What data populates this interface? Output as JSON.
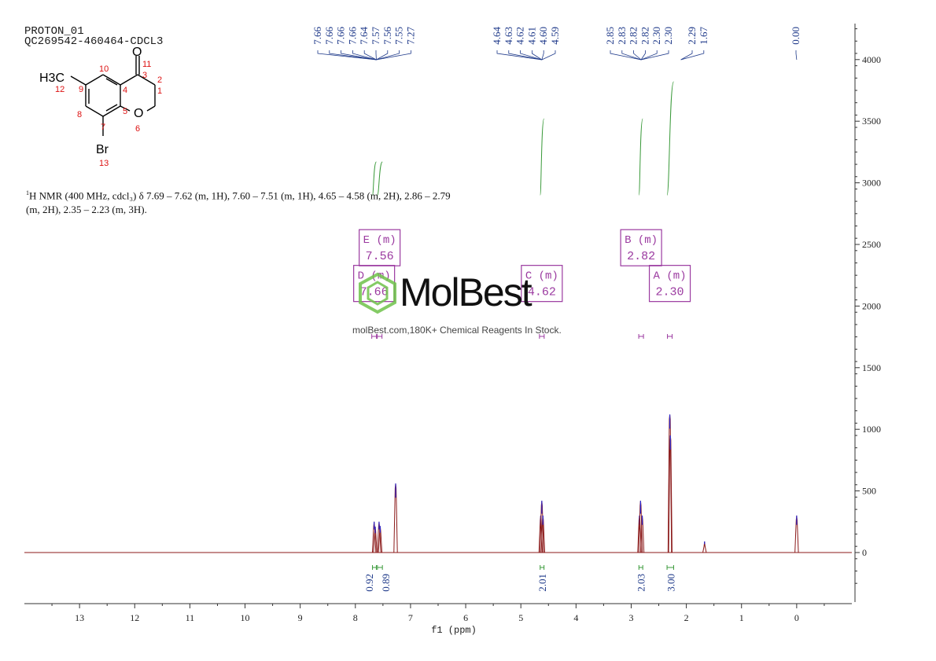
{
  "header": {
    "line1": "PROTON_01",
    "line2": "QC269542-460464-CDCL3"
  },
  "summary": {
    "nucleus_sup": "1",
    "text": "H NMR (400 MHz, cdcl₃) δ 7.69 – 7.62 (m, 1H), 7.60 – 7.51 (m, 1H), 4.65 – 4.58 (m, 2H), 2.86 – 2.79 (m, 2H), 2.35 – 2.23 (m, 3H)."
  },
  "structure": {
    "substituent_left": "H3C",
    "substituent_bottom": "Br",
    "carbonyl_oxygen": "O",
    "ring_oxygen": "O",
    "atom_numbers": [
      "1",
      "2",
      "3",
      "4",
      "5",
      "6",
      "7",
      "8",
      "9",
      "10",
      "11",
      "12",
      "13"
    ]
  },
  "watermark": {
    "brand": "MolBest",
    "tagline": "molBest.com,180K+ Chemical Reagents In Stock."
  },
  "chart_data": {
    "type": "line",
    "xlabel": "f1 (ppm)",
    "xlim": [
      14.0,
      -1.0
    ],
    "x_reversed": true,
    "ylim": [
      -400,
      4300
    ],
    "x_ticks": [
      13,
      12,
      11,
      10,
      9,
      8,
      7,
      6,
      5,
      4,
      3,
      2,
      1,
      0
    ],
    "y_ticks": [
      0,
      500,
      1000,
      1500,
      2000,
      2500,
      3000,
      3500,
      4000
    ],
    "peak_labels": [
      "7.66",
      "7.66",
      "7.66",
      "7.66",
      "7.64",
      "7.57",
      "7.56",
      "7.55",
      "7.27",
      "4.64",
      "4.63",
      "4.62",
      "4.61",
      "4.60",
      "4.59",
      "2.85",
      "2.83",
      "2.82",
      "2.82",
      "2.30",
      "2.30",
      "2.29",
      "1.67",
      "0.00"
    ],
    "peaks": [
      {
        "x": 7.66,
        "h": 250
      },
      {
        "x": 7.64,
        "h": 210
      },
      {
        "x": 7.57,
        "h": 250
      },
      {
        "x": 7.55,
        "h": 215
      },
      {
        "x": 7.27,
        "h": 560
      },
      {
        "x": 4.64,
        "h": 300
      },
      {
        "x": 4.62,
        "h": 420
      },
      {
        "x": 4.6,
        "h": 300
      },
      {
        "x": 2.85,
        "h": 300
      },
      {
        "x": 2.83,
        "h": 420
      },
      {
        "x": 2.8,
        "h": 300
      },
      {
        "x": 2.3,
        "h": 1120
      },
      {
        "x": 2.29,
        "h": 950
      },
      {
        "x": 1.67,
        "h": 90
      },
      {
        "x": 0.0,
        "h": 300
      }
    ],
    "integrals": [
      {
        "from": 7.69,
        "to": 7.62,
        "value": "0.92",
        "y_start": 2900,
        "y_end": 3170
      },
      {
        "from": 7.6,
        "to": 7.51,
        "value": "0.89",
        "y_start": 2900,
        "y_end": 3170
      },
      {
        "from": 4.65,
        "to": 4.58,
        "value": "2.01",
        "y_start": 2900,
        "y_end": 3520
      },
      {
        "from": 2.86,
        "to": 2.79,
        "value": "2.03",
        "y_start": 2900,
        "y_end": 3520
      },
      {
        "from": 2.35,
        "to": 2.23,
        "value": "3.00",
        "y_start": 2900,
        "y_end": 3820
      }
    ],
    "multiplets": [
      {
        "label": "E (m)",
        "shift": "7.56",
        "x": 7.56,
        "y": 2270
      },
      {
        "label": "D (m)",
        "shift": "7.66",
        "x": 7.66,
        "y": 1980
      },
      {
        "label": "C (m)",
        "shift": "4.62",
        "x": 4.62,
        "y": 1980
      },
      {
        "label": "B (m)",
        "shift": "2.82",
        "x": 2.82,
        "y": 2270
      },
      {
        "label": "A (m)",
        "shift": "2.30",
        "x": 2.3,
        "y": 1980
      }
    ],
    "colors": {
      "spectrum": "#8b1a1a",
      "peak_tops": "#2b2bd6",
      "integral": "#3a9a3a",
      "labels": "#1f3a8a",
      "multiplet_box": "#9b3aa0",
      "watermark": "#6ec24a"
    }
  }
}
